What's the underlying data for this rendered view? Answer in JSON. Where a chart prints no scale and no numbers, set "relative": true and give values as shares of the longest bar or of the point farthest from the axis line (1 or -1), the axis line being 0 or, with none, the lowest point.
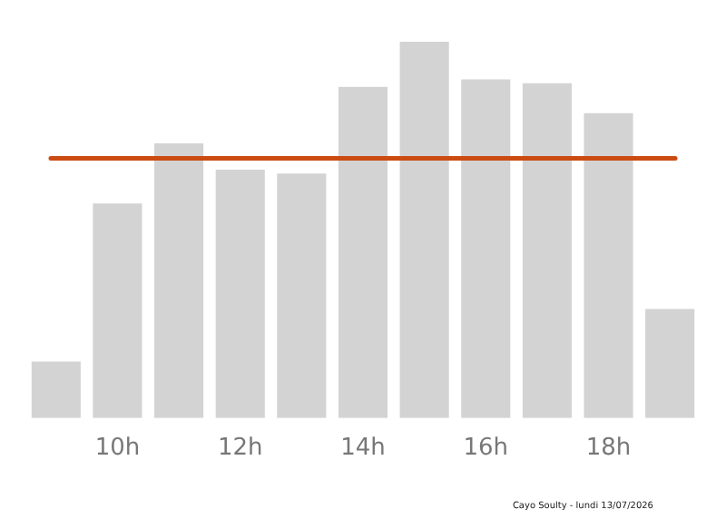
{
  "chart_data": {
    "type": "bar",
    "relative": true,
    "categories": [
      null,
      "10h",
      null,
      "12h",
      null,
      "14h",
      null,
      "16h",
      null,
      "18h",
      null
    ],
    "values": [
      0.15,
      0.57,
      0.73,
      0.66,
      0.65,
      0.88,
      1,
      0.9,
      0.89,
      0.81,
      0.29
    ],
    "color": "#d3d3d3",
    "ref_lines": [
      {
        "axis": "y",
        "value": 0.69,
        "color": "#cc4b12"
      }
    ],
    "annotations": [
      "Cayo Soulty - lundi 13/07/2026"
    ],
    "grid": false,
    "legend": false
  }
}
